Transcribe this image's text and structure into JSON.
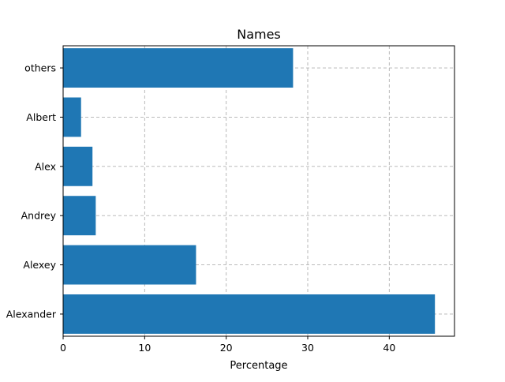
{
  "chart_data": {
    "type": "bar",
    "orientation": "horizontal",
    "title": "Names",
    "xlabel": "Percentage",
    "ylabel": "",
    "categories": [
      "Alexander",
      "Alexey",
      "Andrey",
      "Alex",
      "Albert",
      "others"
    ],
    "values": [
      45.6,
      16.3,
      4.0,
      3.6,
      2.2,
      28.2
    ],
    "xlim": [
      0,
      48
    ],
    "xticks": [
      0,
      10,
      20,
      30,
      40
    ],
    "grid": true,
    "bar_color": "#1f77b4"
  }
}
